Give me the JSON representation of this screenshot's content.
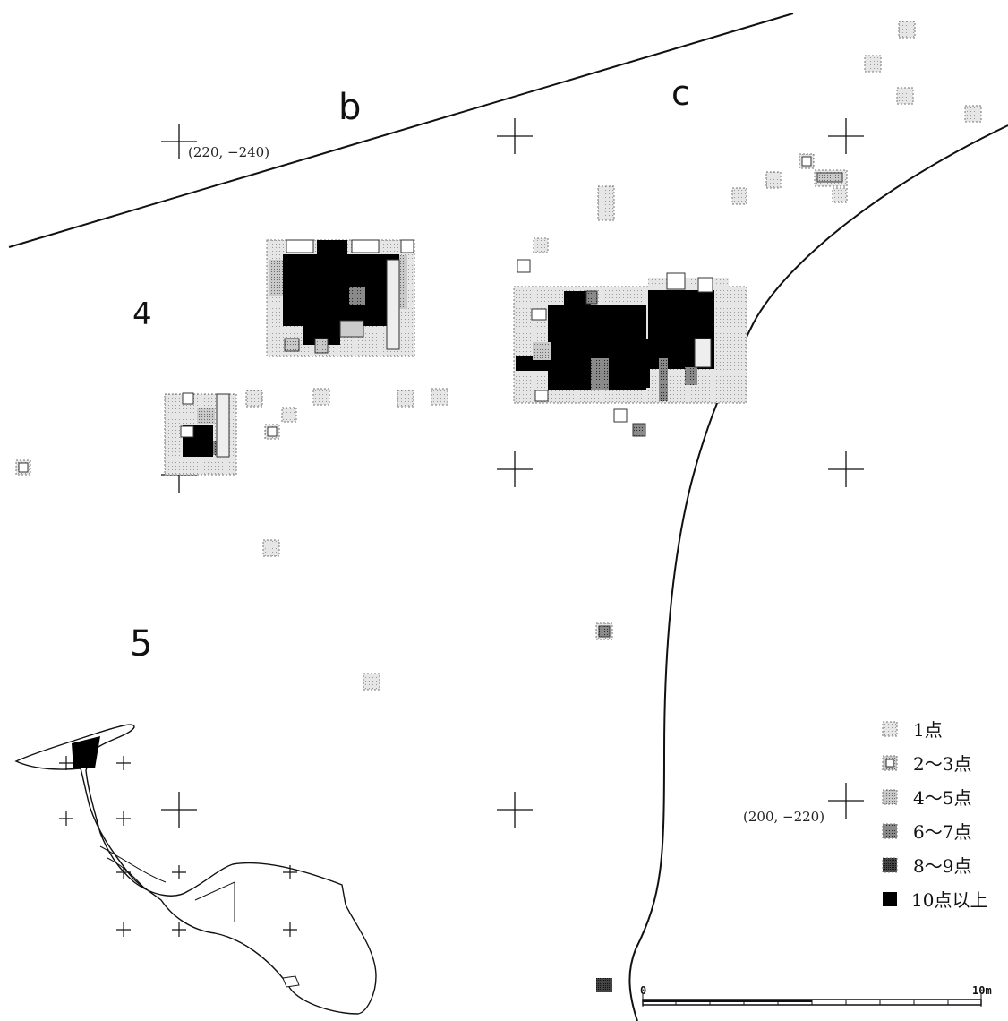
{
  "zone_labels": {
    "b": "b",
    "c": "c",
    "four": "4",
    "five": "5"
  },
  "coord_labels": {
    "top_left": "(220, −240)",
    "bottom_right": "(200, −220)"
  },
  "legend": [
    {
      "label": "1点",
      "fill": "#d9d9d9",
      "border": "dotted"
    },
    {
      "label": "2～3点",
      "fill": "#bdbdbd",
      "border": "inner-box"
    },
    {
      "label": "4～5点",
      "fill": "#a8a8a8",
      "border": "dotted"
    },
    {
      "label": "6～7点",
      "fill": "#7a7a7a",
      "border": "dotted"
    },
    {
      "label": "8～9点",
      "fill": "#3a3a3a",
      "border": "dotted"
    },
    {
      "label": "10点以上",
      "fill": "#000000",
      "border": "solid"
    }
  ],
  "scale": {
    "start": "0",
    "end": "10m"
  },
  "colors": {
    "ink": "#111111",
    "one": "#d9d9d9",
    "two_three": "#bdbdbd",
    "four_five": "#a8a8a8",
    "six_seven": "#7a7a7a",
    "eight_nine": "#3a3a3a",
    "ten_plus": "#000000"
  }
}
